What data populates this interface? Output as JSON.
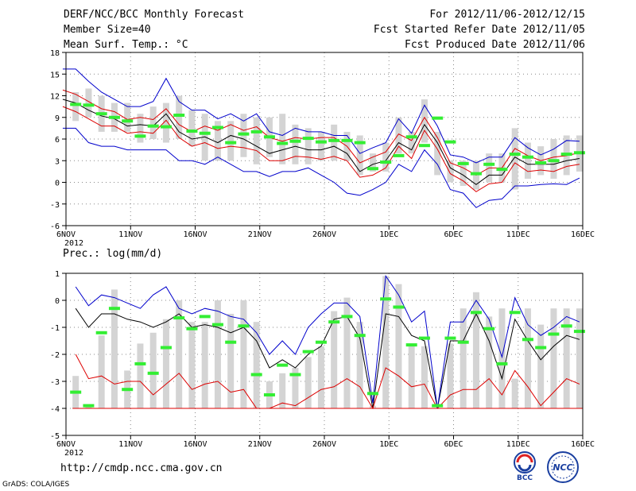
{
  "header": {
    "title": "DERF/NCC/BCC Monthly Forecast",
    "member_size": "Member Size=40",
    "variable": "Mean Surf. Temp.: °C",
    "period": "For 2012/11/06-2012/12/15",
    "started": "Fcst Started Refer Date 2012/11/05",
    "produced": "Fcst Produced Date 2012/11/06"
  },
  "url": "http://cmdp.ncc.cma.gov.cn",
  "credit": "GrADS: COLA/IGES",
  "logos": {
    "bcc": "BCC",
    "ncc": "NCC"
  },
  "colors": {
    "bar": "#d4d4d4",
    "ensemble": "#33ee33",
    "mean": "#000000",
    "spread": "#dd0000",
    "envelope": "#0000cc"
  },
  "chart_data": [
    {
      "type": "line",
      "title": "Mean Surf. Temp.: °C",
      "ylim": [
        -6,
        18
      ],
      "yticks": [
        "-6",
        "-3",
        "0",
        "3",
        "6",
        "9",
        "12",
        "15",
        "18"
      ],
      "xticks": [
        {
          "day": 0,
          "label": "6NOV"
        },
        {
          "day": 5,
          "label": "11NOV"
        },
        {
          "day": 10,
          "label": "16NOV"
        },
        {
          "day": 15,
          "label": "21NOV"
        },
        {
          "day": 20,
          "label": "26NOV"
        },
        {
          "day": 25,
          "label": "1DEC"
        },
        {
          "day": 30,
          "label": "6DEC"
        },
        {
          "day": 35,
          "label": "11DEC"
        },
        {
          "day": 40,
          "label": "16DEC"
        }
      ],
      "xyear": "2012",
      "bars_low": [
        8.5,
        9,
        7,
        7,
        7,
        5.5,
        6,
        5.5,
        6,
        5,
        3,
        3,
        3,
        3.5,
        2.5,
        3.5,
        2.5,
        2.5,
        2.5,
        3,
        3,
        3,
        1,
        1.5,
        1.5,
        4,
        4,
        5.5,
        1,
        0,
        -0.5,
        -1,
        0,
        0,
        -1,
        0.5,
        1,
        0.5,
        1,
        1.5
      ],
      "bars_high": [
        12.5,
        13,
        12,
        11,
        11,
        9.5,
        10.5,
        11,
        12,
        10,
        9.5,
        8.5,
        8.5,
        9.5,
        9,
        9,
        9.5,
        8,
        7.5,
        7,
        8,
        7,
        6.5,
        4,
        5.5,
        9,
        7,
        11.5,
        7,
        3,
        3,
        3,
        4,
        4,
        7.5,
        5.5,
        5,
        6,
        6.5,
        6.5
      ],
      "series": [
        {
          "name": "Ensemble",
          "values": [
            10.8,
            10.7,
            9.5,
            9,
            8.5,
            6.4,
            7.8,
            7.7,
            9.3,
            7.1,
            6.8,
            7.6,
            5.5,
            6.7,
            7,
            6.3,
            5.4,
            5.7,
            6.1,
            5.6,
            5.8,
            5.8,
            5.5,
            1.9,
            2.8,
            3.7,
            6.3,
            5.1,
            8.9,
            5.6,
            2.6,
            1.2,
            2.5,
            1.8,
            3.9,
            3.5,
            2.7,
            3,
            3.9,
            4.1
          ]
        },
        {
          "name": "Mean",
          "values": [
            11.5,
            11,
            10,
            9.2,
            8.8,
            7.8,
            8,
            7.8,
            9.5,
            7,
            6,
            6.3,
            5.5,
            6.5,
            6,
            5,
            4,
            4.5,
            5,
            4.5,
            4.5,
            5,
            4,
            1.5,
            2.5,
            3,
            5.5,
            4.5,
            8,
            5.5,
            2,
            1,
            -0.3,
            1,
            1,
            3.5,
            2.5,
            2.5,
            2.5,
            3,
            3.3
          ]
        },
        {
          "name": "Upper spread",
          "values": [
            12.8,
            12.2,
            11.2,
            10.2,
            9.8,
            8.7,
            9,
            8.7,
            10.2,
            8,
            7,
            7.8,
            7.2,
            8,
            7.2,
            7.7,
            6.2,
            5.7,
            6.2,
            6,
            6.2,
            6.2,
            5,
            2.7,
            3.5,
            4.2,
            6.7,
            5.8,
            9,
            6.2,
            2.7,
            2,
            1,
            2,
            2,
            4.7,
            3.7,
            3,
            3.5,
            3.7,
            4.1
          ]
        },
        {
          "name": "Lower spread",
          "values": [
            10.5,
            9.8,
            8.8,
            7.8,
            7.8,
            6.8,
            7,
            6.8,
            8.6,
            6.2,
            5,
            5.5,
            4.7,
            5,
            4.8,
            4.4,
            3,
            3,
            3.6,
            3.5,
            3.2,
            3.6,
            3,
            0.7,
            1,
            2,
            5,
            3.3,
            7.2,
            4.6,
            1.2,
            0.2,
            -1.3,
            -0.2,
            0,
            2.7,
            1.5,
            1.7,
            1.5,
            2.2,
            2.5
          ]
        },
        {
          "name": "Upper envelope",
          "values": [
            15.7,
            15.7,
            14,
            12.5,
            11.5,
            10.5,
            10.5,
            11.2,
            14.4,
            11.2,
            10,
            10,
            8.8,
            9.5,
            8.5,
            9.5,
            7,
            6.5,
            7.5,
            7,
            7,
            6.5,
            6.5,
            4,
            4.8,
            5.5,
            8.8,
            6.8,
            10.7,
            7.8,
            3.8,
            3.5,
            2.7,
            3.5,
            3.5,
            6.2,
            4.8,
            3.8,
            4.6,
            5.8,
            5.7
          ]
        },
        {
          "name": "Lower envelope",
          "values": [
            7.5,
            7.5,
            5.5,
            5,
            5,
            4.5,
            4.5,
            4.5,
            4.5,
            3,
            3,
            2.5,
            3.5,
            2.5,
            1.5,
            1.5,
            0.8,
            1.5,
            1.5,
            2,
            1,
            0,
            -1.5,
            -1.8,
            -1,
            0,
            2.5,
            1.5,
            4.5,
            2.5,
            -1,
            -1.5,
            -3.5,
            -2.5,
            -2.3,
            -0.5,
            -0.5,
            -0.3,
            -0.2,
            -0.3,
            0.6
          ]
        }
      ]
    },
    {
      "type": "line",
      "title": "Prec.: log(mm/d)",
      "ylim": [
        -5,
        1
      ],
      "yticks": [
        "-5",
        "-4",
        "-3",
        "-2",
        "-1",
        "0",
        "1"
      ],
      "xticks": [
        {
          "day": 0,
          "label": "6NOV"
        },
        {
          "day": 5,
          "label": "11NOV"
        },
        {
          "day": 10,
          "label": "16NOV"
        },
        {
          "day": 15,
          "label": "21NOV"
        },
        {
          "day": 20,
          "label": "26NOV"
        },
        {
          "day": 25,
          "label": "1DEC"
        },
        {
          "day": 30,
          "label": "6DEC"
        },
        {
          "day": 35,
          "label": "11DEC"
        },
        {
          "day": 40,
          "label": "16DEC"
        }
      ],
      "xyear": "2012",
      "bars_low": [
        -4,
        -4,
        -4,
        -4,
        -4,
        -4,
        -4,
        -4,
        -4,
        -4,
        -4,
        -4,
        -4,
        -4,
        -4,
        -4,
        -4,
        -4,
        -4,
        -4,
        -4,
        -4,
        -4,
        -4,
        -4,
        -4,
        -4,
        -4,
        -4,
        -4,
        -4,
        -4,
        -4,
        -4,
        -4,
        -4,
        -4,
        -4,
        -4,
        -4
      ],
      "bars_high": [
        -2.8,
        -3.9,
        -1.3,
        0.4,
        -2.6,
        -1.6,
        -1.2,
        -0.7,
        0,
        -0.8,
        -0.8,
        0,
        -0.5,
        0,
        -0.8,
        -3,
        -2.7,
        -2.5,
        -2.1,
        -1.7,
        -0.4,
        0.1,
        -0.8,
        -3.9,
        0.9,
        0.6,
        -1.6,
        -1.7,
        -4,
        -1.6,
        -0.3,
        0.3,
        -0.6,
        -0.3,
        -2.9,
        -0.3,
        -0.9,
        -0.3,
        -0.3,
        -0.3
      ],
      "series": [
        {
          "name": "Ensemble",
          "values": [
            -3.4,
            -3.9,
            -1.2,
            -0.3,
            -3.3,
            -2.35,
            -2.7,
            -1.75,
            -0.65,
            -1.05,
            -0.6,
            -0.9,
            -1.55,
            -0.95,
            -2.75,
            -3.5,
            -2.4,
            -2.75,
            -1.9,
            -1.55,
            -0.8,
            -0.6,
            -1.3,
            -3.45,
            0.05,
            -0.25,
            -1.65,
            -1.4,
            -3.9,
            -1.4,
            -1.55,
            -0.45,
            -1.05,
            -2.35,
            -0.45,
            -1.45,
            -1.75,
            -1.25,
            -0.95,
            -1.15
          ]
        },
        {
          "name": "Mean",
          "values": [
            -0.3,
            -1,
            -0.5,
            -0.5,
            -0.7,
            -0.8,
            -1,
            -0.8,
            -0.5,
            -1,
            -0.9,
            -1,
            -1.2,
            -1,
            -1.5,
            -2.5,
            -2.2,
            -2.5,
            -2,
            -1.7,
            -0.7,
            -0.6,
            -1.4,
            -4,
            -0.5,
            -0.6,
            -1.3,
            -1.5,
            -4,
            -1.5,
            -1.5,
            -0.5,
            -1.5,
            -2.9,
            -0.7,
            -1.5,
            -2.2,
            -1.7,
            -1.3,
            -1.45
          ]
        },
        {
          "name": "Lower",
          "values": [
            -2,
            -2.9,
            -2.8,
            -3.1,
            -3,
            -3,
            -3.5,
            -3.1,
            -2.7,
            -3.3,
            -3.1,
            -3,
            -3.4,
            -3.3,
            -4,
            -4,
            -3.8,
            -3.9,
            -3.6,
            -3.3,
            -3.2,
            -2.9,
            -3.2,
            -4,
            -2.5,
            -2.8,
            -3.2,
            -3.1,
            -4,
            -3.5,
            -3.3,
            -3.3,
            -2.9,
            -3.5,
            -2.6,
            -3.2,
            -3.9,
            -3.4,
            -2.9,
            -3.1
          ]
        },
        {
          "name": "Upper",
          "values": [
            0.5,
            -0.2,
            0.2,
            0.1,
            -0.1,
            -0.3,
            0.2,
            0.5,
            -0.3,
            -0.5,
            -0.3,
            -0.4,
            -0.6,
            -0.7,
            -1.2,
            -2,
            -1.5,
            -2,
            -1,
            -0.5,
            -0.1,
            -0.1,
            -0.6,
            -3.8,
            0.9,
            0.2,
            -0.8,
            -0.4,
            -4,
            -0.8,
            -0.8,
            0,
            -0.7,
            -2.1,
            0.1,
            -0.9,
            -1.3,
            -1,
            -0.6,
            -0.8
          ]
        }
      ]
    }
  ]
}
